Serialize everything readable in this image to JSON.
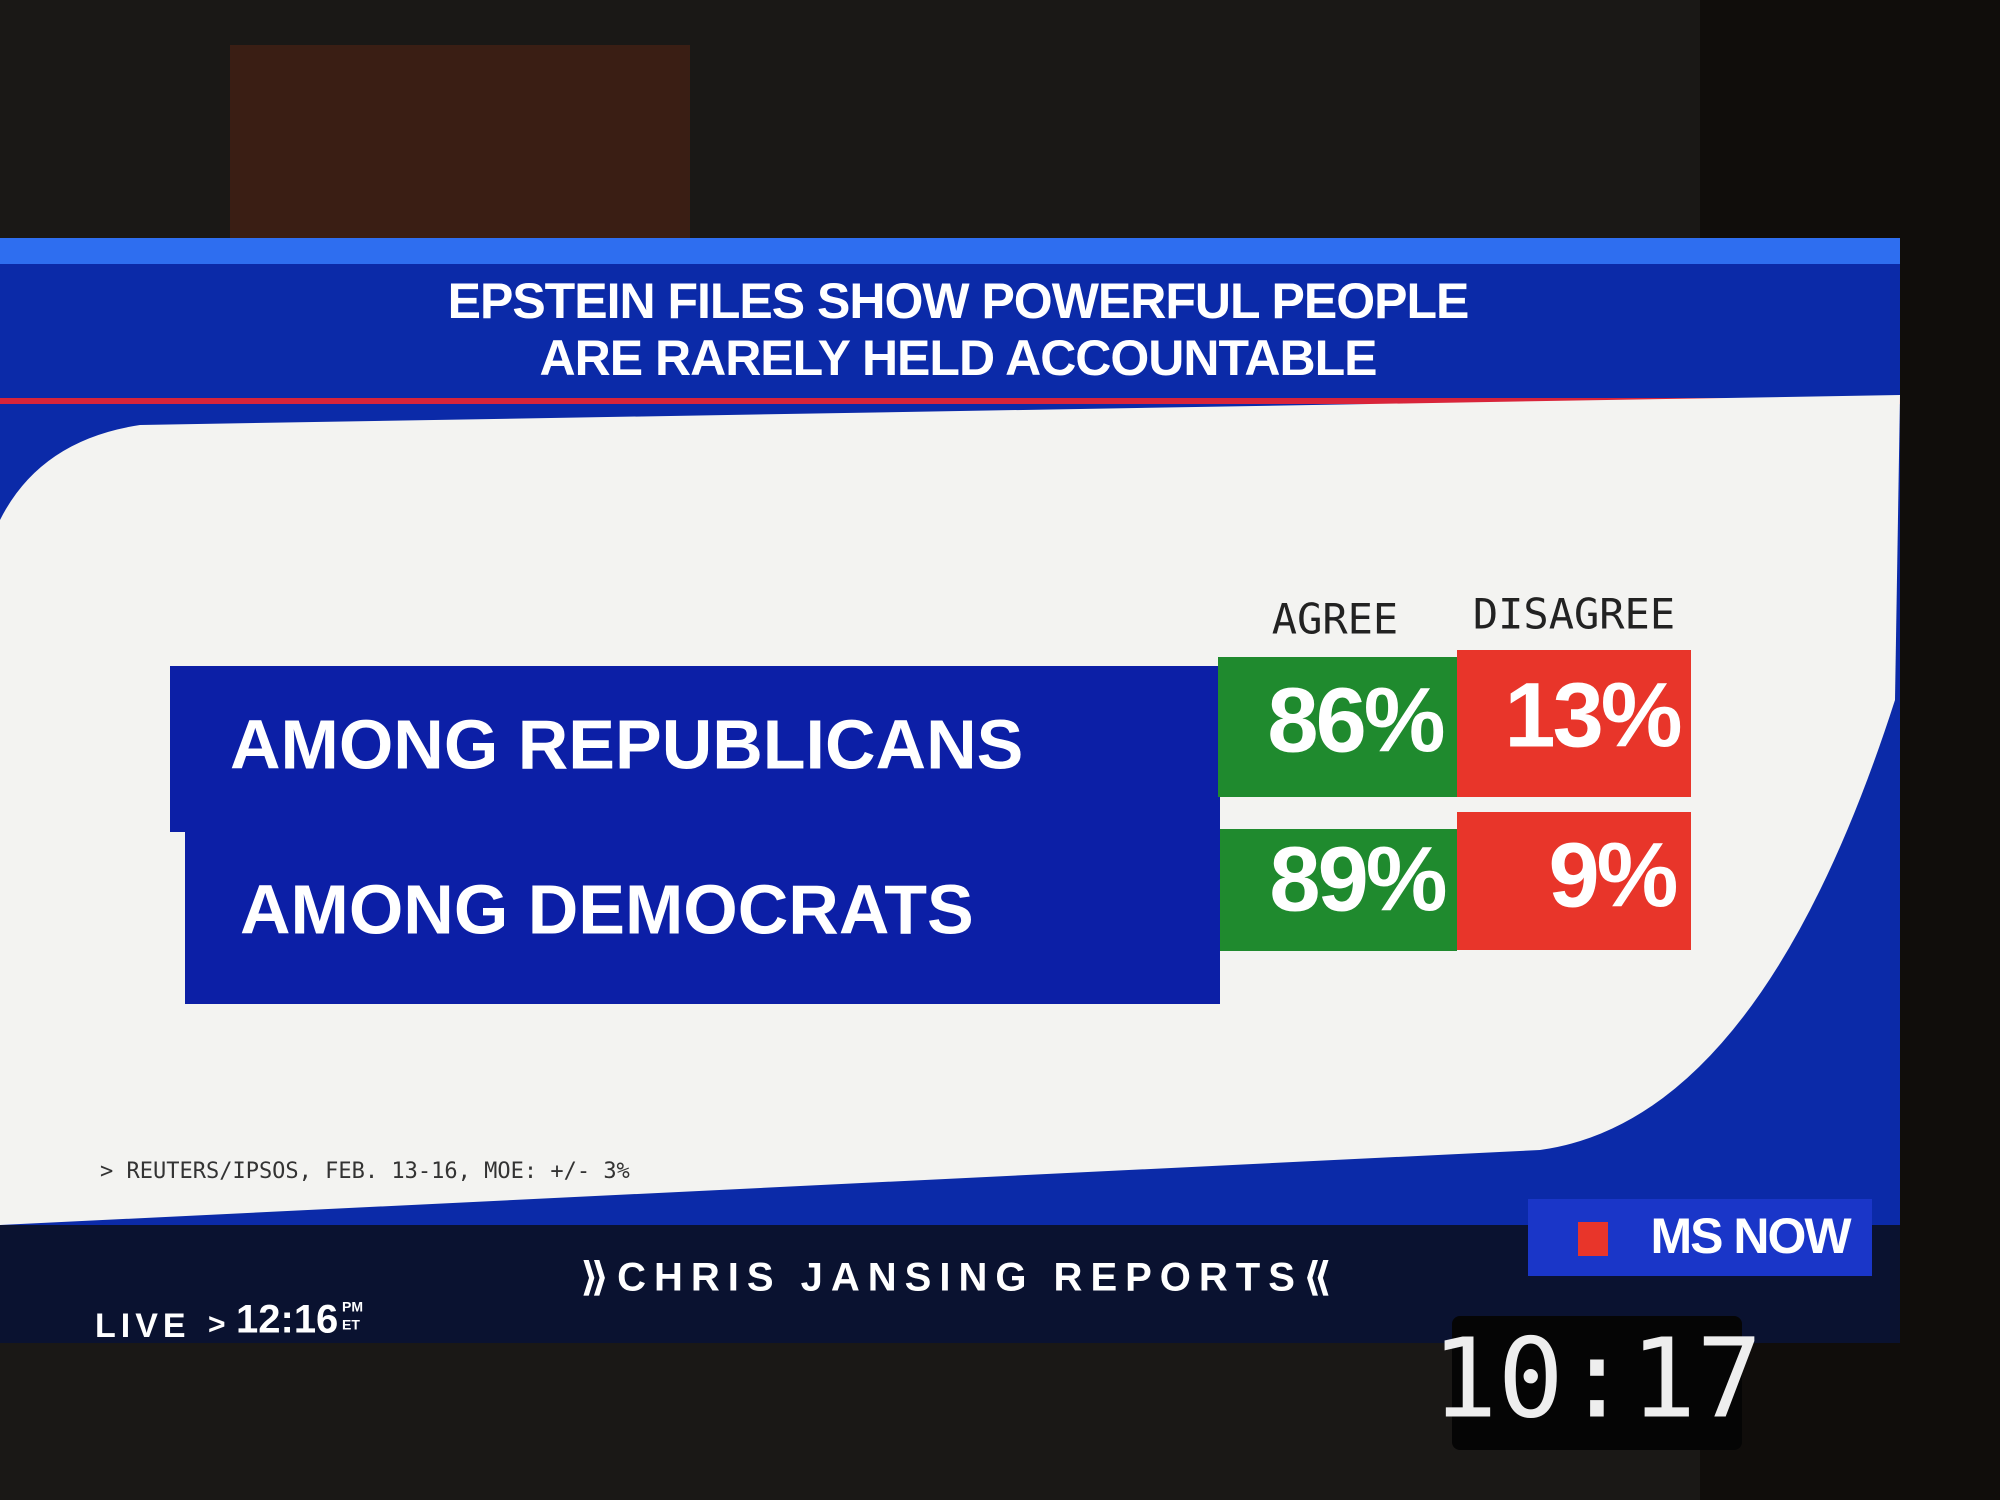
{
  "header": {
    "title_lines": [
      "EPSTEIN FILES SHOW POWERFUL PEOPLE",
      "ARE RARELY HELD ACCOUNTABLE"
    ]
  },
  "table": {
    "columns": [
      "AGREE",
      "DISAGREE"
    ],
    "rows": [
      [
        "AMONG REPUBLICANS",
        "86%",
        "13%"
      ],
      [
        "AMONG DEMOCRATS",
        "89%",
        "9%"
      ]
    ]
  },
  "source": "> REUTERS/IPSOS, FEB. 13-16, MOE: +/- 3%",
  "footer": {
    "live": "LIVE",
    "arrow": ">",
    "time": "12:16",
    "period": "PM",
    "zone": "ET",
    "show": "⟫CHRIS JANSING REPORTS⟪",
    "network": "MS NOW"
  },
  "clock": "10:17"
}
